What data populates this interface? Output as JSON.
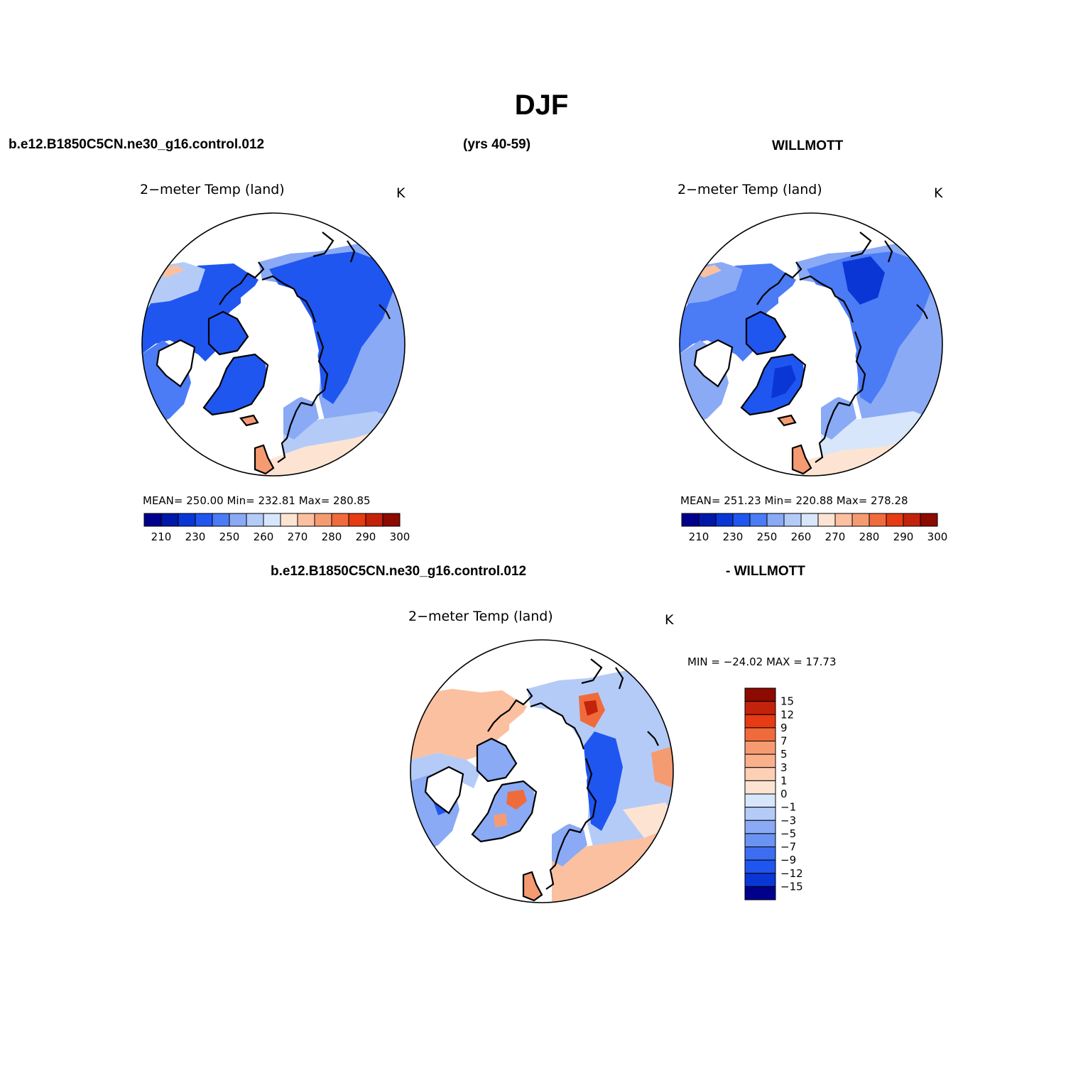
{
  "figure": {
    "season": "DJF",
    "case_name": "b.e12.B1850C5CN.ne30_g16.control.012",
    "years": "(yrs 40-59)",
    "obs_name": "WILLMOTT",
    "diff_case_name": "b.e12.B1850C5CN.ne30_g16.control.012",
    "diff_obs_name": "- WILLMOTT"
  },
  "panels": {
    "model": {
      "title": "2−meter Temp (land)",
      "units": "K",
      "stats": "MEAN= 250.00   Min= 232.81   Max= 280.85"
    },
    "obs": {
      "title": "2−meter Temp (land)",
      "units": "K",
      "stats": "MEAN= 251.23   Min= 220.88   Max= 278.28"
    },
    "diff": {
      "title": "2−meter Temp (land)",
      "units": "K",
      "stats": "MIN = −24.02  MAX =   17.73"
    }
  },
  "colorbars": {
    "abs_colors": [
      "#00008c",
      "#0018a8",
      "#0a36d6",
      "#1f56f0",
      "#4b7bf5",
      "#8aaaf5",
      "#b4cbf8",
      "#d8e6fb",
      "#fde4d2",
      "#fbc0a0",
      "#f59b72",
      "#f06b3c",
      "#e63b13",
      "#c4230b",
      "#8c0a00"
    ],
    "abs_labels": [
      "210",
      "230",
      "250",
      "260",
      "270",
      "280",
      "290",
      "300"
    ],
    "diff_colors": [
      "#8c0a00",
      "#c4230b",
      "#e63b13",
      "#f06b3c",
      "#f59b72",
      "#fbb08c",
      "#fcd0b4",
      "#fde4d2",
      "#d8e6fb",
      "#b4cbf8",
      "#8aaaf5",
      "#6a93f2",
      "#3d6ef2",
      "#1f56f0",
      "#0a36d6",
      "#00008c"
    ],
    "diff_labels": [
      "15",
      "12",
      "9",
      "7",
      "5",
      "3",
      "1",
      "0",
      "−1",
      "−3",
      "−5",
      "−7",
      "−9",
      "−12",
      "−15"
    ]
  },
  "map_fields": {
    "model": [
      {
        "region": "Siberia",
        "kelvin": 245
      },
      {
        "region": "Siberia-interior",
        "kelvin": 240
      },
      {
        "region": "Canada",
        "kelvin": 245
      },
      {
        "region": "Greenland",
        "kelvin": 240
      },
      {
        "region": "Alaska",
        "kelvin": 255
      },
      {
        "region": "Scandinavia",
        "kelvin": 262
      },
      {
        "region": "Europe",
        "kelvin": 272
      },
      {
        "region": "British-Isles",
        "kelvin": 280
      }
    ],
    "obs": [
      {
        "region": "Siberia",
        "kelvin": 245
      },
      {
        "region": "Siberia-interior",
        "kelvin": 235
      },
      {
        "region": "Canada",
        "kelvin": 245
      },
      {
        "region": "Greenland",
        "kelvin": 240
      },
      {
        "region": "Alaska",
        "kelvin": 255
      },
      {
        "region": "Scandinavia",
        "kelvin": 262
      },
      {
        "region": "Europe",
        "kelvin": 270
      },
      {
        "region": "British-Isles",
        "kelvin": 280
      }
    ],
    "diff": [
      {
        "region": "Siberia-east",
        "kelvin": 12
      },
      {
        "region": "Siberia-west",
        "kelvin": -7
      },
      {
        "region": "Canada",
        "kelvin": 1
      },
      {
        "region": "Greenland",
        "kelvin": 5
      },
      {
        "region": "Alaska",
        "kelvin": -3
      },
      {
        "region": "Scandinavia",
        "kelvin": -5
      },
      {
        "region": "Europe",
        "kelvin": 3
      }
    ]
  }
}
